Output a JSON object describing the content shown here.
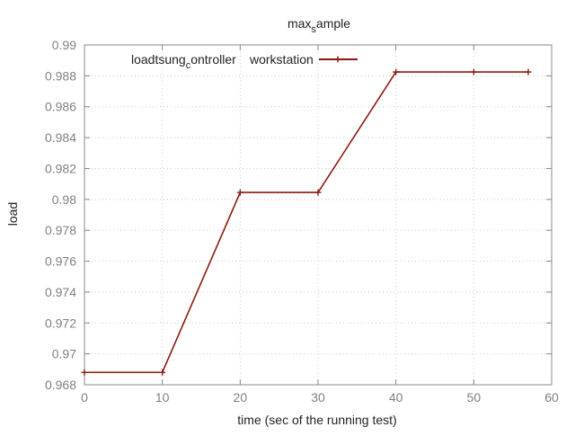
{
  "chart_data": {
    "type": "line",
    "title": "max",
    "title_subscript": "s",
    "title_tail": "ample",
    "xlabel": "time (sec of the running test)",
    "ylabel": "load",
    "xlim": [
      0,
      60
    ],
    "ylim": [
      0.968,
      0.99
    ],
    "x_ticks": [
      "0",
      "10",
      "20",
      "30",
      "40",
      "50",
      "60"
    ],
    "y_ticks": [
      "0.968",
      "0.97",
      "0.972",
      "0.974",
      "0.976",
      "0.978",
      "0.98",
      "0.982",
      "0.984",
      "0.986",
      "0.988",
      "0.99"
    ],
    "grid": true,
    "legend_position": "top-left",
    "series": [
      {
        "name": "loadtsung_controller_workstation",
        "legend_part1": "loadtsung",
        "legend_sub": "c",
        "legend_part2": "ontroller",
        "legend_tail": "workstation",
        "color": "#8b1a10",
        "x": [
          0,
          10,
          20,
          30,
          40,
          50,
          57
        ],
        "y": [
          0.9688,
          0.9688,
          0.98045,
          0.98045,
          0.98825,
          0.98825,
          0.98825
        ]
      }
    ]
  }
}
